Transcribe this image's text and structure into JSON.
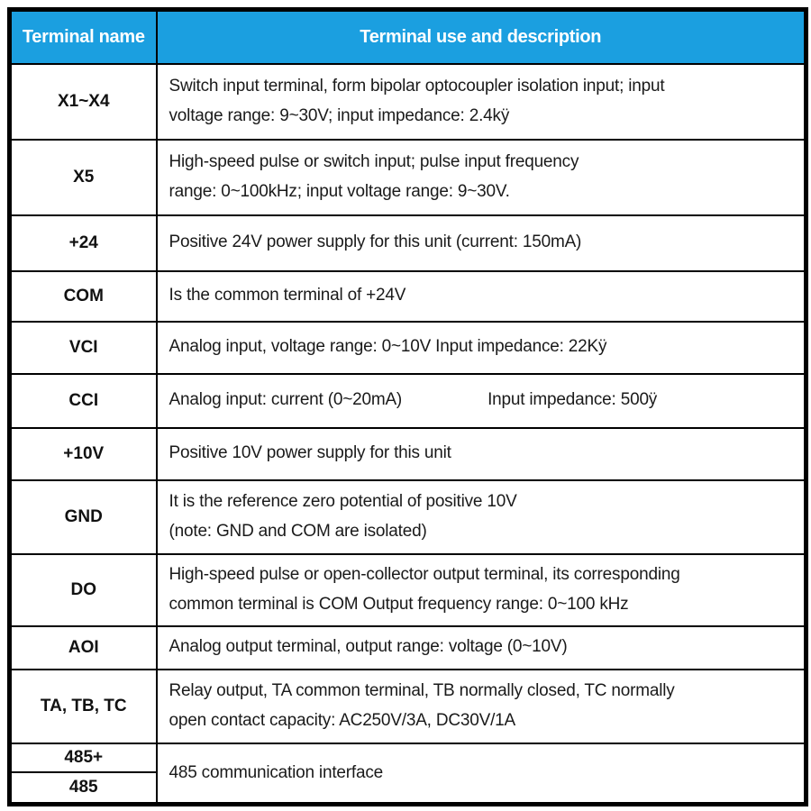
{
  "table": {
    "accent_color": "#1b9fe0",
    "border_color": "#000000",
    "header": {
      "terminal_col": "Terminal name",
      "desc_col": "Terminal use and description"
    },
    "rows": [
      {
        "terminal": "X1~X4",
        "description": "Switch input terminal, form bipolar optocoupler isolation input; input\nvoltage range: 9~30V; input impedance: 2.4kÿ"
      },
      {
        "terminal": "X5",
        "description": "High-speed pulse or switch input; pulse input frequency\nrange: 0~100kHz; input voltage range: 9~30V."
      },
      {
        "terminal": "+24",
        "description": "Positive 24V power supply for this unit (current: 150mA)"
      },
      {
        "terminal": "COM",
        "description": "Is the common terminal of +24V"
      },
      {
        "terminal": "VCI",
        "description": "Analog input, voltage range: 0~10V Input impedance: 22Kÿ"
      },
      {
        "terminal": "CCI",
        "description_left": "Analog input: current (0~20mA)",
        "description_right": "Input impedance: 500ÿ"
      },
      {
        "terminal": "+10V",
        "description": "Positive 10V power supply for this unit"
      },
      {
        "terminal": "GND",
        "description": "It is the reference zero potential of positive 10V\n(note: GND and COM are isolated)"
      },
      {
        "terminal": "DO",
        "description": "High-speed pulse or open-collector output terminal, its corresponding\ncommon terminal is COM Output frequency range: 0~100 kHz"
      },
      {
        "terminal": "AOI",
        "description": "Analog output terminal, output range: voltage (0~10V)"
      },
      {
        "terminal": "TA, TB, TC",
        "description": "Relay output, TA common terminal, TB normally closed, TC normally\nopen contact capacity: AC250V/3A, DC30V/1A"
      },
      {
        "terminal": "485+",
        "description": "485 communication interface"
      },
      {
        "terminal": "485"
      }
    ]
  }
}
